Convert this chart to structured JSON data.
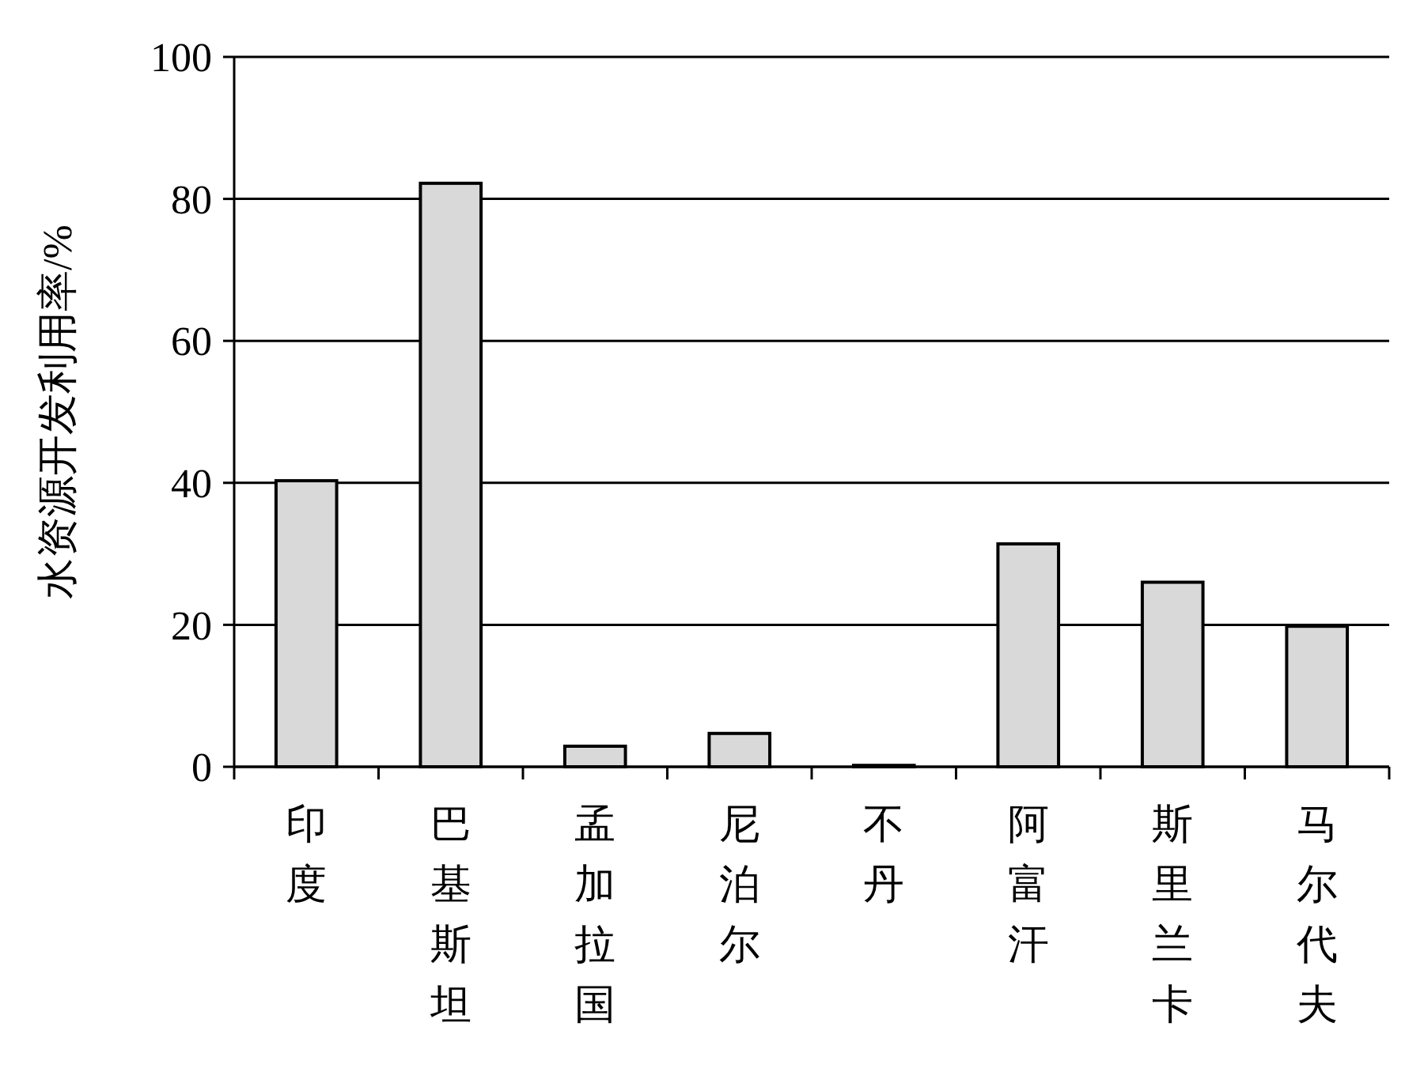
{
  "chart_data": {
    "type": "bar",
    "ylabel": "水资源开发利用率/%",
    "categories": [
      "印度",
      "巴基斯坦",
      "孟加拉国",
      "尼泊尔",
      "不丹",
      "阿富汗",
      "斯里兰卡",
      "马尔代夫"
    ],
    "values": [
      40.3,
      82.2,
      2.9,
      4.7,
      0.2,
      31.4,
      26,
      19.8
    ],
    "color": "#d9d9d9",
    "ylim": [
      0,
      100
    ],
    "yticks": [
      0,
      20,
      40,
      60,
      80,
      100
    ],
    "grid": "y"
  }
}
